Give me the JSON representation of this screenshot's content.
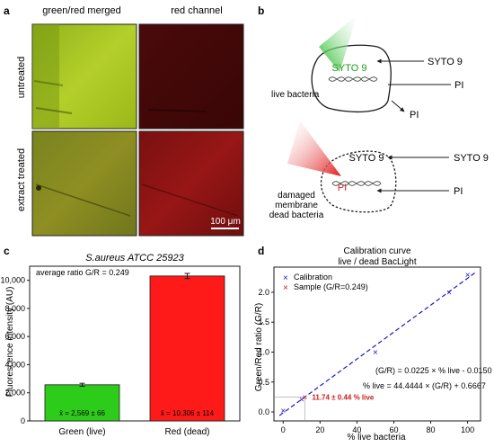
{
  "panels": {
    "a": {
      "letter": "a",
      "col1": "green/red merged",
      "col2": "red channel",
      "row1": "untreated",
      "row2": "extract treated",
      "scalebar": "100 μm"
    },
    "b": {
      "letter": "b",
      "top": {
        "inside": "SYTO 9",
        "arrow1": "SYTO 9",
        "arrow2": "PI",
        "arrow3": "PI",
        "caption": "live bacteria"
      },
      "bottom": {
        "inside": "SYTO 9",
        "pi_inside": "PI",
        "arrow1": "SYTO 9",
        "arrow2": "PI",
        "caption1": "damaged",
        "caption2": "membrane",
        "caption3": "dead bacteria"
      }
    },
    "c": {
      "letter": "c"
    },
    "d": {
      "letter": "d"
    }
  },
  "chart_data": [
    {
      "type": "bar",
      "title": "S.aureus ATCC 25923",
      "ylabel": "Fluorescence intensity (AU)",
      "annotation": "average ratio G/R = 0.249",
      "categories": [
        "Green (live)",
        "Red (dead)"
      ],
      "values": [
        2569,
        10306
      ],
      "errors": [
        66,
        114
      ],
      "bar_labels": [
        "x̄ = 2,569 ± 66",
        "x̄ = 10,306 ± 114"
      ],
      "colors": [
        "#2ecc1a",
        "#ff1a1a"
      ],
      "ylim": [
        0,
        11000
      ],
      "yticks": [
        0,
        2000,
        4000,
        6000,
        8000,
        10000
      ],
      "ytick_labels": [
        "0",
        "2,000",
        "4,000",
        "6,000",
        "8,000",
        "10,000"
      ]
    },
    {
      "type": "scatter",
      "title": "Calibration curve",
      "subtitle": "live / dead BacLight",
      "xlabel": "% live bacteria",
      "ylabel": "Green/Red ratio (G/R)",
      "xlim": [
        -5,
        107
      ],
      "ylim": [
        -0.15,
        2.42
      ],
      "xticks": [
        0,
        20,
        40,
        60,
        80,
        100
      ],
      "yticks": [
        0.0,
        0.5,
        1.0,
        1.5,
        2.0
      ],
      "ytick_labels": [
        "0.0",
        "0.5",
        "1.0",
        "1.5",
        "2.0"
      ],
      "legend": [
        {
          "marker": "x",
          "label": "Calibration",
          "color": "#1a1acc"
        },
        {
          "marker": "x",
          "label": "Sample (G/R=0.249)",
          "color": "#cc1a1a"
        }
      ],
      "series": [
        {
          "name": "Calibration",
          "x": [
            0,
            10,
            50,
            90,
            100
          ],
          "y": [
            0.02,
            0.21,
            1.0,
            2.0,
            2.29
          ]
        },
        {
          "name": "Sample (G/R=0.249)",
          "x": [
            11.74
          ],
          "y": [
            0.249
          ]
        }
      ],
      "fit": {
        "slope": 0.0225,
        "intercept": -0.015
      },
      "equation1": "(G/R) = 0.0225 × % live - 0.0150",
      "equation2": "% live = 44.4444 × (G/R) + 0.6667",
      "sample_label": "11.74 ± 0.44 % live",
      "sample_error": 0.44
    }
  ]
}
